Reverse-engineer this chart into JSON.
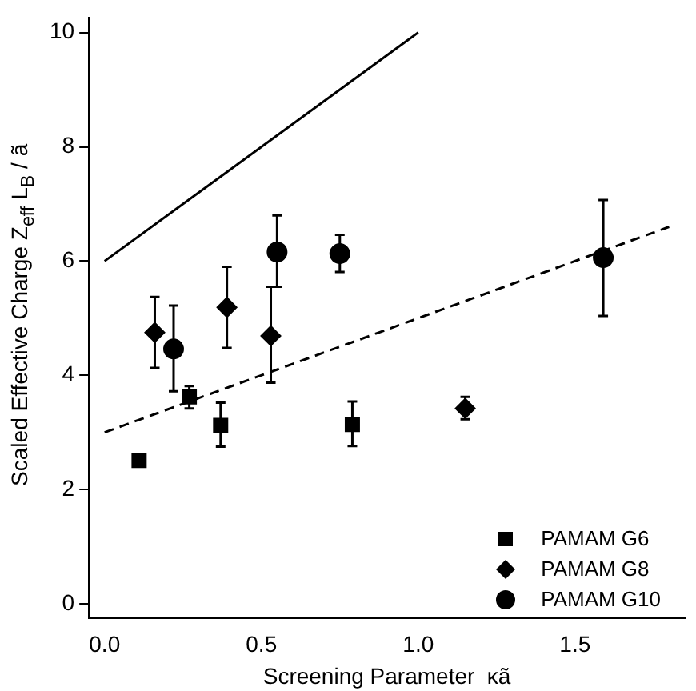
{
  "chart_data": {
    "type": "scatter",
    "xlabel": "Screening Parameter  κã",
    "ylabel": "Scaled Effective Charge Z$_{eff}$ L$_{B}$ / ã",
    "xlim": [
      -0.05,
      1.85
    ],
    "ylim": [
      -0.25,
      10.25
    ],
    "xticks": [
      {
        "value": 0,
        "label": "0.0"
      },
      0.5,
      {
        "value": 1,
        "label": "1.0"
      },
      1.5
    ],
    "yticks": [
      0,
      2,
      4,
      6,
      8,
      10
    ],
    "grid": false,
    "legend": "bottom right",
    "series": [
      {
        "name": "PAMAM G6",
        "color": "#000000",
        "marker": "square",
        "x": [
          0.11,
          0.27,
          0.37,
          0.79
        ],
        "values": [
          2.51,
          3.62,
          3.12,
          3.14
        ],
        "errors": [
          null,
          [
            3.42,
            3.81
          ],
          [
            2.75,
            3.52
          ],
          [
            2.76,
            3.54
          ]
        ]
      },
      {
        "name": "PAMAM G8",
        "color": "#000000",
        "marker": "diamond",
        "x": [
          0.16,
          0.39,
          0.53,
          1.15
        ],
        "values": [
          4.75,
          5.19,
          4.69,
          3.42
        ],
        "errors": [
          [
            4.13,
            5.37
          ],
          [
            4.48,
            5.9
          ],
          [
            3.87,
            5.55
          ],
          [
            3.23,
            3.62
          ]
        ]
      },
      {
        "name": "PAMAM G10",
        "color": "#000000",
        "marker": "circle",
        "x": [
          0.22,
          0.55,
          0.75,
          1.59
        ],
        "values": [
          4.46,
          6.16,
          6.13,
          6.06
        ],
        "errors": [
          [
            3.72,
            5.22
          ],
          [
            5.55,
            6.8
          ],
          [
            5.81,
            6.46
          ],
          [
            5.04,
            7.07
          ]
        ]
      },
      {
        "type": "line",
        "color": "#000000",
        "line_style": "solid",
        "marker": "none",
        "x": [
          0,
          1
        ],
        "values": [
          6,
          10
        ]
      },
      {
        "type": "line",
        "color": "#000000",
        "line_style": "dashed",
        "marker": "none",
        "x": [
          0,
          1.8
        ],
        "values": [
          3,
          6.6
        ]
      }
    ]
  }
}
